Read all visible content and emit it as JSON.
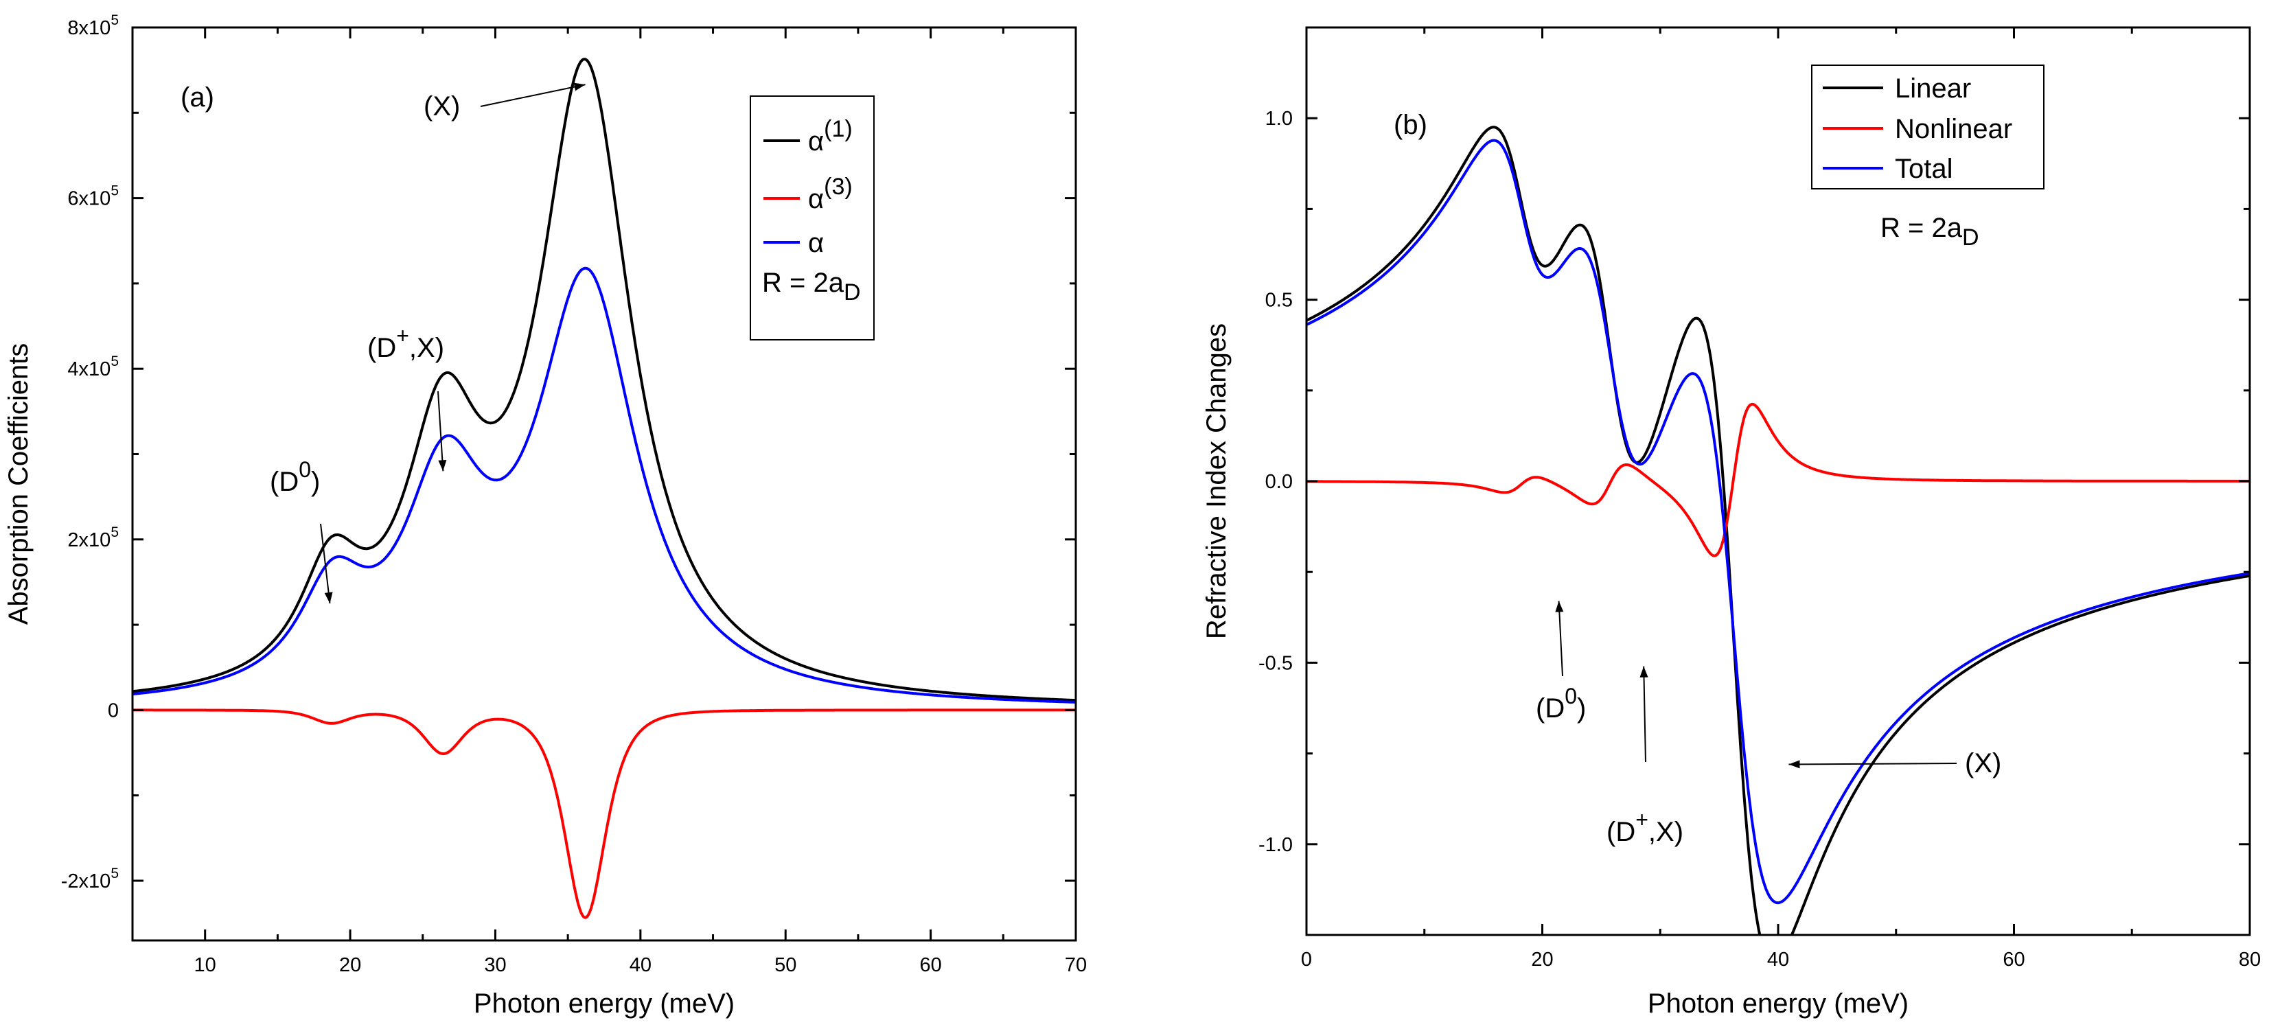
{
  "colors": {
    "linear": "#000000",
    "nonlinear": "#ff0000",
    "total": "#0000ff",
    "axis": "#000000"
  },
  "chart_data": [
    {
      "type": "line",
      "panel_label": "(a)",
      "xlabel": "Photon energy (meV)",
      "ylabel": "Absorption Coefficients",
      "xlim": [
        5,
        70
      ],
      "ylim": [
        -270000,
        800000
      ],
      "x_ticks": [
        10,
        20,
        30,
        40,
        50,
        60,
        70
      ],
      "x_tick_labels": [
        "10",
        "20",
        "30",
        "40",
        "50",
        "60",
        "70"
      ],
      "y_ticks": [
        -200000,
        0,
        200000,
        400000,
        600000,
        800000
      ],
      "y_tick_labels": [
        {
          "base": "-2x10",
          "exp": "5"
        },
        {
          "base": "0",
          "exp": ""
        },
        {
          "base": "2x10",
          "exp": "5"
        },
        {
          "base": "4x10",
          "exp": "5"
        },
        {
          "base": "6x10",
          "exp": "5"
        },
        {
          "base": "8x10",
          "exp": "5"
        }
      ],
      "legend": {
        "placement": "top-right",
        "entries": [
          {
            "base": "α",
            "sup": "(1)",
            "color_key": "linear"
          },
          {
            "base": "α",
            "sup": "(3)",
            "color_key": "nonlinear"
          },
          {
            "base": "α",
            "sup": "",
            "color_key": "total"
          }
        ],
        "note": {
          "base": "R = 2a",
          "sub": "D"
        }
      },
      "annotations": [
        {
          "parts": [
            {
              "t": "(D"
            },
            {
              "t": "0",
              "sup": true
            },
            {
              "t": ")"
            }
          ],
          "target": [
            18.6,
            125000
          ]
        },
        {
          "parts": [
            {
              "t": "(D"
            },
            {
              "t": "+",
              "sup": true
            },
            {
              "t": ",X)"
            }
          ],
          "target": [
            26.4,
            280000
          ]
        },
        {
          "parts": [
            {
              "t": "(X)"
            }
          ],
          "target": [
            36.2,
            733000
          ]
        }
      ],
      "series": [
        {
          "name": "α(1)",
          "color_key": "linear",
          "model": "lorentz-abs",
          "peaks": [
            {
              "center": 18.7,
              "amplitude": 127000,
              "width": 2.6
            },
            {
              "center": 26.4,
              "amplitude": 280000,
              "width": 3.2
            },
            {
              "center": 36.2,
              "amplitude": 733000,
              "width": 3.9
            }
          ]
        },
        {
          "name": "α(3)",
          "color_key": "nonlinear",
          "model": "lorentz-sq-neg",
          "peaks": [
            {
              "center": 18.7,
              "amplitude": 15000,
              "width": 2.4
            },
            {
              "center": 26.4,
              "amplitude": 50000,
              "width": 2.5
            },
            {
              "center": 36.2,
              "amplitude": 243000,
              "width": 2.6
            }
          ]
        },
        {
          "name": "α",
          "color_key": "total",
          "model": "lorentz-abs",
          "peaks": [
            {
              "center": 18.8,
              "amplitude": 113000,
              "width": 2.8
            },
            {
              "center": 26.5,
              "amplitude": 231000,
              "width": 3.4
            },
            {
              "center": 36.3,
              "amplitude": 490000,
              "width": 4.2
            }
          ]
        }
      ]
    },
    {
      "type": "line",
      "panel_label": "(b)",
      "xlabel": "Photon energy (meV)",
      "ylabel": "Refractive Index Changes",
      "xlim": [
        0,
        80
      ],
      "ylim": [
        -1.25,
        1.25
      ],
      "x_ticks": [
        0,
        20,
        40,
        60,
        80
      ],
      "x_tick_labels": [
        "0",
        "20",
        "40",
        "60",
        "80"
      ],
      "y_ticks": [
        -1.0,
        -0.5,
        0.0,
        0.5,
        1.0
      ],
      "y_tick_labels": [
        {
          "base": "-1.0",
          "exp": ""
        },
        {
          "base": "-0.5",
          "exp": ""
        },
        {
          "base": "0.0",
          "exp": ""
        },
        {
          "base": "0.5",
          "exp": ""
        },
        {
          "base": "1.0",
          "exp": ""
        }
      ],
      "legend": {
        "placement": "top-right",
        "entries": [
          {
            "base": "Linear",
            "sup": "",
            "color_key": "linear"
          },
          {
            "base": "Nonlinear",
            "sup": "",
            "color_key": "nonlinear"
          },
          {
            "base": "Total",
            "sup": "",
            "color_key": "total"
          }
        ],
        "note": {
          "base": "R = 2a",
          "sub": "D"
        }
      },
      "annotations": [
        {
          "parts": [
            {
              "t": "(D"
            },
            {
              "t": "0",
              "sup": true
            },
            {
              "t": ")"
            }
          ],
          "target": [
            21.4,
            -0.33
          ]
        },
        {
          "parts": [
            {
              "t": "(D"
            },
            {
              "t": "+",
              "sup": true
            },
            {
              "t": ",X)"
            }
          ],
          "target": [
            28.6,
            -0.51
          ]
        },
        {
          "parts": [
            {
              "t": "(X)"
            }
          ],
          "target": [
            40.9,
            -0.78
          ]
        }
      ],
      "series": [
        {
          "name": "Linear",
          "color_key": "linear",
          "model": "lorentz-disp",
          "peaks": [
            {
              "center": 18.2,
              "amplitude": 0.33,
              "width": 3.2
            },
            {
              "center": 25.7,
              "amplitude": 0.52,
              "width": 3.4
            },
            {
              "center": 36.2,
              "amplitude": 0.99,
              "width": 3.6
            }
          ]
        },
        {
          "name": "Nonlinear",
          "color_key": "nonlinear",
          "model": "disp-sq",
          "peaks": [
            {
              "center": 18.2,
              "amplitude": 0.025,
              "width": 2.6
            },
            {
              "center": 25.7,
              "amplitude": 0.06,
              "width": 2.7
            },
            {
              "center": 36.2,
              "amplitude": 0.21,
              "width": 2.8
            }
          ]
        },
        {
          "name": "Total",
          "color_key": "total",
          "model": "lorentz-disp",
          "peaks": [
            {
              "center": 18.3,
              "amplitude": 0.32,
              "width": 3.3
            },
            {
              "center": 25.8,
              "amplitude": 0.48,
              "width": 3.6
            },
            {
              "center": 36.2,
              "amplitude": 0.84,
              "width": 4.1
            }
          ]
        }
      ]
    }
  ]
}
